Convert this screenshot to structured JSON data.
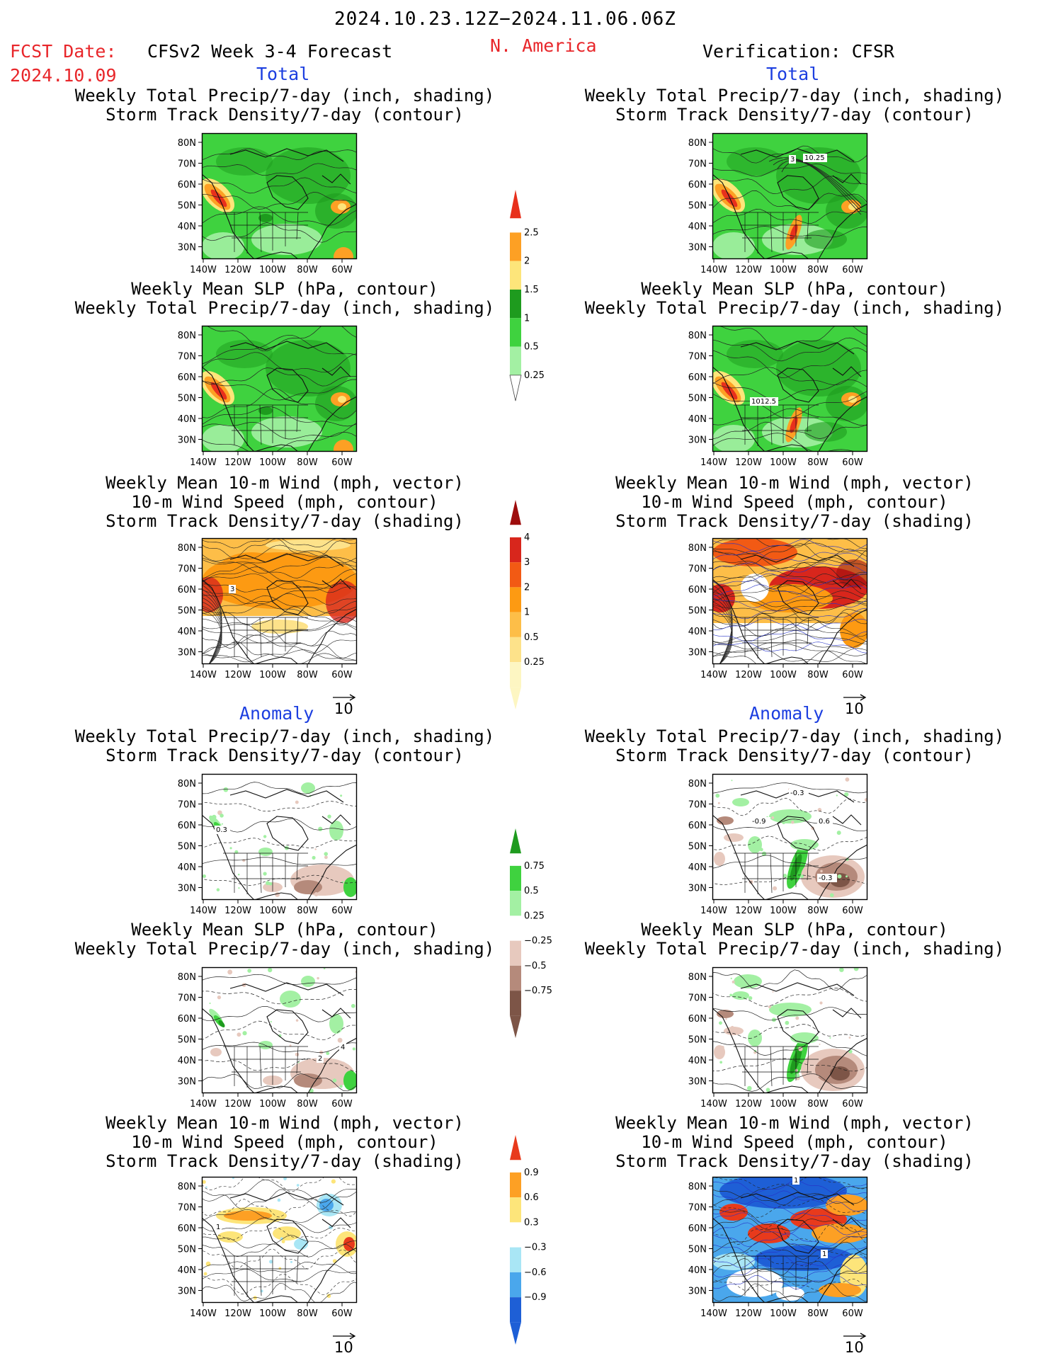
{
  "header": {
    "period": "2024.10.23.12Z−2024.11.06.06Z",
    "fcst_label": "FCST Date:",
    "fcst_date": "2024.10.09",
    "model_label": "CFSv2 Week 3-4 Forecast",
    "region": "N. America",
    "verification_label": "Verification: CFSR"
  },
  "sections": {
    "total": "Total",
    "anomaly": "Anomaly"
  },
  "titles": {
    "precip_storm": [
      "Weekly Total Precip/7-day (inch, shading)",
      "Storm Track Density/7-day (contour)"
    ],
    "slp_precip": [
      "Weekly Mean SLP (hPa, contour)",
      "Weekly Total Precip/7-day (inch, shading)"
    ],
    "wind_storm": [
      "Weekly Mean 10-m Wind (mph, vector)",
      "10-m Wind Speed (mph, contour)",
      "Storm Track Density/7-day (shading)"
    ]
  },
  "axes": {
    "lat_labels": [
      "80N",
      "70N",
      "60N",
      "50N",
      "40N",
      "30N"
    ],
    "lon_labels": [
      "140W",
      "120W",
      "100W",
      "80W",
      "60W"
    ]
  },
  "vector_ref": "10",
  "colorbars": {
    "total_precip": {
      "labels": [
        "2.5",
        "2",
        "1.5",
        "1",
        "0.5",
        "0.25"
      ],
      "colors": [
        "#e8301c",
        "#fda024",
        "#fde57a",
        "#1e9b1e",
        "#3fd23f",
        "#a3f0a3"
      ]
    },
    "total_storm": {
      "labels": [
        "4",
        "3",
        "2",
        "1",
        "0.5",
        "0.25"
      ],
      "colors": [
        "#9e0d0d",
        "#d8261c",
        "#f25a14",
        "#fd9a12",
        "#fdbe48",
        "#fde28a",
        "#fdf6c2"
      ]
    },
    "anom_precip": {
      "labels": [
        "0.75",
        "0.5",
        "0.25",
        "−0.25",
        "−0.5",
        "−0.75"
      ],
      "colors": [
        "#1e9b1e",
        "#3fd23f",
        "#a3f0a3",
        "#ffffff",
        "#e7c9be",
        "#b58a7b",
        "#7d5547"
      ]
    },
    "anom_storm": {
      "labels": [
        "0.9",
        "0.6",
        "0.3",
        "−0.3",
        "−0.6",
        "−0.9"
      ],
      "colors": [
        "#e83a1c",
        "#fda024",
        "#fde57a",
        "#ffffff",
        "#a9e6f5",
        "#4aa7ec",
        "#1e5fd6"
      ]
    }
  },
  "contour_labels": {
    "v_total_precip": [
      "3",
      "10.25"
    ],
    "v_total_slp": [
      "1012.5"
    ],
    "f_total_wind": [
      "3"
    ],
    "f_anom_precip": [
      "0.3"
    ],
    "v_anom_precip": [
      "-0.3",
      "-0.9",
      "0.6",
      "-0.3"
    ],
    "f_anom_slp": [
      "4",
      "2"
    ],
    "f_anom_wind": [
      "1"
    ],
    "v_anom_wind": [
      "1",
      "1"
    ]
  }
}
